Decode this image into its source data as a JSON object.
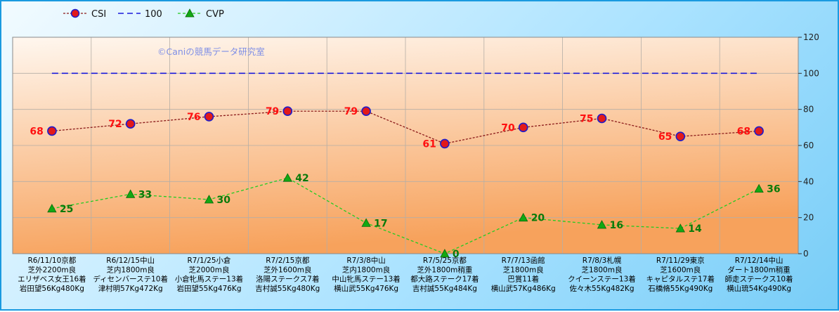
{
  "chart_data": {
    "type": "line",
    "copyright": "©Caniの競馬データ研究室",
    "ylim": [
      0,
      120
    ],
    "yticks": [
      "0",
      "20",
      "40",
      "60",
      "80",
      "100",
      "120"
    ],
    "legend": [
      {
        "label": "CSI",
        "color": "#8b1a1a"
      },
      {
        "label": "100",
        "color": "#1a1adc"
      },
      {
        "label": "CVP",
        "color": "#22cc22"
      }
    ],
    "categories": [
      [
        "R6/11/10京都",
        "芝外2200m良",
        "エリザベス女王16着",
        "岩田望56Kg480Kg"
      ],
      [
        "R6/12/15中山",
        "芝内1800m良",
        "ディセンバーステ10着",
        "津村明57Kg472Kg"
      ],
      [
        "R7/1/25小倉",
        "芝2000m良",
        "小倉牝馬ステー13着",
        "岩田望55Kg476Kg"
      ],
      [
        "R7/2/15京都",
        "芝外1600m良",
        "洛陽ステークス7着",
        "吉村誠55Kg480Kg"
      ],
      [
        "R7/3/8中山",
        "芝内1800m良",
        "中山牝馬ステー13着",
        "横山武55Kg476Kg"
      ],
      [
        "R7/5/25京都",
        "芝外1800m稍重",
        "都大路ステーク17着",
        "吉村誠55Kg484Kg"
      ],
      [
        "R7/7/13函館",
        "芝1800m良",
        "巴賞11着",
        "横山武57Kg486Kg"
      ],
      [
        "R7/8/3札幌",
        "芝1800m良",
        "クイーンステー13着",
        "佐々木55Kg482Kg"
      ],
      [
        "R7/11/29東京",
        "芝1600m良",
        "キャピタルステ17着",
        "石橋脩55Kg490Kg"
      ],
      [
        "R7/12/14中山",
        "ダート1800m稍重",
        "師走ステークス10着",
        "横山琉54Kg490Kg"
      ]
    ],
    "series": [
      {
        "name": "CSI",
        "values": [
          68,
          72,
          76,
          79,
          79,
          61,
          70,
          75,
          65,
          68
        ],
        "color": "#8b1a1a",
        "marker": "#cc1a1a"
      },
      {
        "name": "100",
        "values": [
          100,
          100,
          100,
          100,
          100,
          100,
          100,
          100,
          100,
          100
        ],
        "color": "#1a1adc"
      },
      {
        "name": "CVP",
        "values": [
          25,
          33,
          30,
          42,
          17,
          0,
          20,
          16,
          14,
          36
        ],
        "color": "#22cc22",
        "marker": "#13a813"
      }
    ]
  }
}
